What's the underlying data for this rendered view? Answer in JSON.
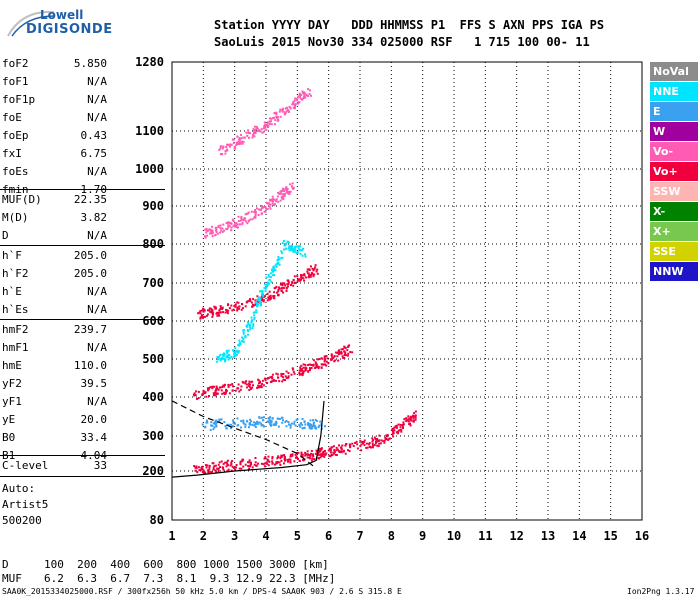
{
  "logo": {
    "top": "Lowell",
    "bottom": "DIGISONDE"
  },
  "header": {
    "line1": "Station YYYY DAY   DDD HHMMSS P1  FFS S AXN PPS IGA PS",
    "line2": "SaoLuis 2015 Nov30 334 025000 RSF   1 715 100 00- 11"
  },
  "params": [
    {
      "name": "foF2",
      "value": "5.850"
    },
    {
      "name": "foF1",
      "value": "N/A"
    },
    {
      "name": "foF1p",
      "value": "N/A"
    },
    {
      "name": "foE",
      "value": "N/A"
    },
    {
      "name": "foEp",
      "value": "0.43"
    },
    {
      "name": "fxI",
      "value": "6.75"
    },
    {
      "name": "foEs",
      "value": "N/A"
    },
    {
      "name": "fmin",
      "value": "1.70"
    },
    {
      "name": "MUF(D)",
      "value": "22.35"
    },
    {
      "name": "M(D)",
      "value": "3.82"
    },
    {
      "name": "D",
      "value": "N/A"
    },
    {
      "name": "h`F",
      "value": "205.0"
    },
    {
      "name": "h`F2",
      "value": "205.0"
    },
    {
      "name": "h`E",
      "value": "N/A"
    },
    {
      "name": "h`Es",
      "value": "N/A"
    },
    {
      "name": "hmF2",
      "value": "239.7"
    },
    {
      "name": "hmF1",
      "value": "N/A"
    },
    {
      "name": "hmE",
      "value": "110.0"
    },
    {
      "name": "yF2",
      "value": "39.5"
    },
    {
      "name": "yF1",
      "value": "N/A"
    },
    {
      "name": "yE",
      "value": "20.0"
    },
    {
      "name": "B0",
      "value": "33.4"
    },
    {
      "name": "B1",
      "value": "4.04"
    },
    {
      "name": "C-level",
      "value": "33"
    }
  ],
  "auto": {
    "line1": "Auto:",
    "line2": "Artist5",
    "line3": "500200"
  },
  "legend": [
    {
      "label": "NoVal",
      "color": "#8c8c8c"
    },
    {
      "label": "NNE",
      "color": "#00e5ff"
    },
    {
      "label": "E",
      "color": "#3aa0f0"
    },
    {
      "label": "W",
      "color": "#a0009e"
    },
    {
      "label": "Vo-",
      "color": "#ff5ab4"
    },
    {
      "label": "Vo+",
      "color": "#f0003c"
    },
    {
      "label": "SSW",
      "color": "#ffb4b4"
    },
    {
      "label": "X-",
      "color": "#008200"
    },
    {
      "label": "X+",
      "color": "#78c850"
    },
    {
      "label": "SSE",
      "color": "#d2d200"
    },
    {
      "label": "NNW",
      "color": "#1e14c8"
    }
  ],
  "chart_data": {
    "type": "scatter",
    "x_ticks": [
      "1",
      "2",
      "3",
      "4",
      "5",
      "6",
      "7",
      "8",
      "9",
      "10",
      "11",
      "12",
      "13",
      "14",
      "15",
      "16"
    ],
    "y_ticks": [
      "80",
      "200",
      "300",
      "400",
      "500",
      "600",
      "700",
      "800",
      "900",
      "1000",
      "1100",
      "1280"
    ],
    "xlim": [
      1,
      16
    ],
    "y_tick_values": [
      80,
      200,
      300,
      400,
      500,
      600,
      700,
      800,
      900,
      1000,
      1100,
      1280
    ],
    "traces": [
      {
        "name": "",
        "color": "#f0003c",
        "points": [
          [
            1.7,
            205
          ],
          [
            2.5,
            215
          ],
          [
            3.5,
            225
          ],
          [
            4.5,
            235
          ],
          [
            5.3,
            245
          ],
          [
            5.8,
            255
          ],
          [
            6.5,
            265
          ],
          [
            7.5,
            285
          ],
          [
            8.2,
            320
          ],
          [
            8.8,
            360
          ]
        ]
      },
      {
        "name": "",
        "color": "#f0003c",
        "points": [
          [
            1.7,
            410
          ],
          [
            2.5,
            420
          ],
          [
            3.5,
            435
          ],
          [
            4.5,
            455
          ],
          [
            5.3,
            480
          ],
          [
            6,
            500
          ],
          [
            6.7,
            530
          ]
        ]
      },
      {
        "name": "",
        "color": "#f0003c",
        "points": [
          [
            1.8,
            620
          ],
          [
            2.5,
            630
          ],
          [
            3.5,
            650
          ],
          [
            4.3,
            680
          ],
          [
            5,
            710
          ],
          [
            5.6,
            740
          ]
        ]
      },
      {
        "name": "",
        "color": "#ff5ab4",
        "points": [
          [
            2,
            830
          ],
          [
            2.8,
            850
          ],
          [
            3.6,
            880
          ],
          [
            4.3,
            920
          ],
          [
            4.9,
            960
          ]
        ]
      },
      {
        "name": "",
        "color": "#ff5ab4",
        "points": [
          [
            2.5,
            1050
          ],
          [
            3.2,
            1080
          ],
          [
            4,
            1120
          ],
          [
            4.8,
            1170
          ],
          [
            5.4,
            1210
          ]
        ]
      },
      {
        "name": "",
        "color": "#3aa0f0",
        "points": [
          [
            2,
            330
          ],
          [
            3,
            335
          ],
          [
            4,
            340
          ],
          [
            5,
            335
          ],
          [
            5.8,
            330
          ]
        ]
      },
      {
        "name": "",
        "color": "#00e5ff",
        "points": [
          [
            2.4,
            500
          ],
          [
            3,
            520
          ],
          [
            3.5,
            600
          ],
          [
            4,
            700
          ],
          [
            4.6,
            800
          ],
          [
            5.2,
            780
          ]
        ]
      }
    ],
    "curves": [
      {
        "name": "",
        "style": "solid",
        "points": [
          [
            1,
            185
          ],
          [
            1.8,
            190
          ],
          [
            3,
            200
          ],
          [
            4.5,
            210
          ],
          [
            5.3,
            218
          ],
          [
            5.6,
            230
          ],
          [
            5.75,
            300
          ],
          [
            5.85,
            390
          ]
        ]
      },
      {
        "name": "",
        "style": "dashed",
        "points": [
          [
            1,
            390
          ],
          [
            2,
            350
          ],
          [
            3,
            320
          ],
          [
            4,
            290
          ],
          [
            5,
            250
          ],
          [
            5.5,
            215
          ]
        ]
      }
    ]
  },
  "distance_table": {
    "d_label": "D",
    "d_values": "100  200  400  600  800 1000 1500 3000 [km]",
    "muf_label": "MUF",
    "muf_values": "6.2  6.3  6.7  7.3  8.1  9.3 12.9 22.3 [MHz]"
  },
  "footer": {
    "left": "SAA0K_2015334025000.RSF / 300fx256h 50 kHz 5.0 km / DPS-4 SAA0K 903 / 2.6 S 315.8 E",
    "right": "Ion2Png 1.3.17"
  }
}
